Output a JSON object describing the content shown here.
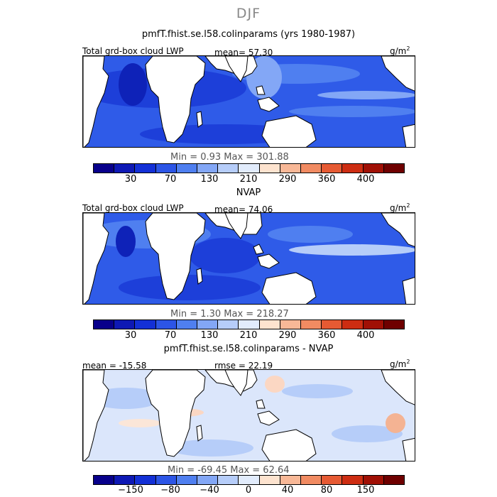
{
  "season": "DJF",
  "colorbar_colors": [
    "#08008b",
    "#0e19b5",
    "#1330d6",
    "#2c55e6",
    "#4f7ff0",
    "#83a7f6",
    "#b6cdf9",
    "#e2ecfc",
    "#fde3cf",
    "#f8b897",
    "#f18b62",
    "#e65a33",
    "#cd2d12",
    "#a01005",
    "#6f0000"
  ],
  "panels": [
    {
      "title": "pmfT.fhist.se.l58.colinparams (yrs 1980-1987)",
      "left_label": "Total grd-box cloud LWP",
      "center_label": "mean=  57.30",
      "unit": "g/m",
      "unit_sup": "2",
      "minmax": "Min =    0.93  Max = 301.88",
      "cbar_labels": [
        "30",
        "70",
        "130",
        "210",
        "290",
        "360",
        "400"
      ]
    },
    {
      "title": "NVAP",
      "left_label": "Total grd-box cloud LWP",
      "center_label": "mean=  74.06",
      "unit": "g/m",
      "unit_sup": "2",
      "minmax": "Min =    1.30  Max = 218.27",
      "cbar_labels": [
        "30",
        "70",
        "130",
        "210",
        "290",
        "360",
        "400"
      ]
    },
    {
      "title": "pmfT.fhist.se.l58.colinparams - NVAP",
      "left_label": "mean = -15.58",
      "center_label": "rmse =  22.19",
      "unit": "g/m",
      "unit_sup": "2",
      "minmax": "Min = -69.45  Max =  62.64",
      "cbar_labels": [
        "−150",
        "−80",
        "−40",
        "0",
        "40",
        "80",
        "150"
      ]
    }
  ],
  "chart_data": [
    {
      "type": "heatmap",
      "title": "pmfT.fhist.se.l58.colinparams (yrs 1980-1987)",
      "field": "Total grd-box cloud LWP",
      "units": "g/m2",
      "mean": 57.3,
      "min": 0.93,
      "max": 301.88,
      "colorbar_ticks": [
        30,
        70,
        130,
        210,
        290,
        360,
        400
      ]
    },
    {
      "type": "heatmap",
      "title": "NVAP",
      "field": "Total grd-box cloud LWP",
      "units": "g/m2",
      "mean": 74.06,
      "min": 1.3,
      "max": 218.27,
      "colorbar_ticks": [
        30,
        70,
        130,
        210,
        290,
        360,
        400
      ]
    },
    {
      "type": "heatmap",
      "title": "pmfT.fhist.se.l58.colinparams - NVAP",
      "units": "g/m2",
      "mean": -15.58,
      "rmse": 22.19,
      "min": -69.45,
      "max": 62.64,
      "colorbar_ticks": [
        -150,
        -80,
        -40,
        0,
        40,
        80,
        150
      ]
    }
  ]
}
